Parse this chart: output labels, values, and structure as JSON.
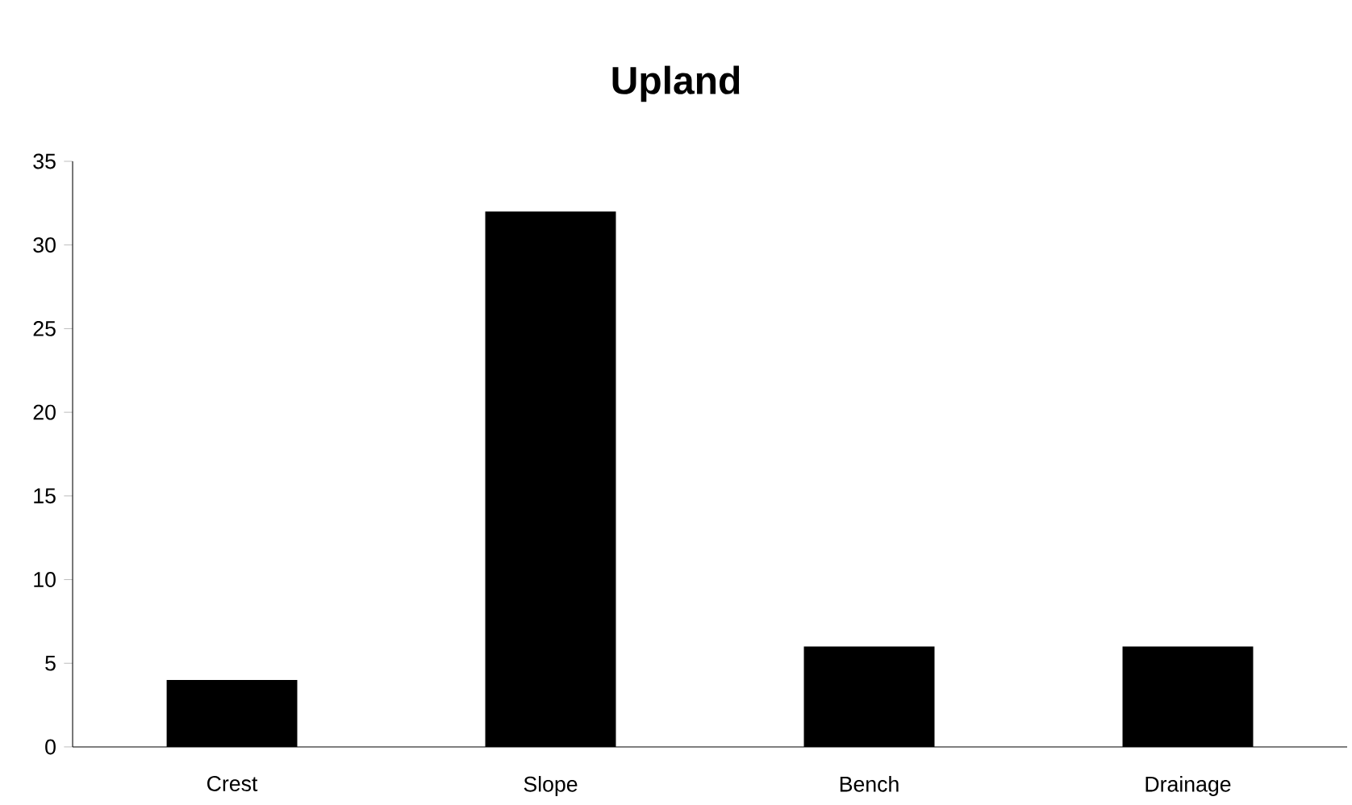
{
  "chart_data": {
    "type": "bar",
    "title": "Upland",
    "categories": [
      "Crest",
      "Slope",
      "Bench",
      "Drainage"
    ],
    "values": [
      4,
      32,
      6,
      6
    ],
    "color": "#000000",
    "ylim": [
      0,
      35
    ],
    "yticks": [
      0,
      5,
      10,
      15,
      20,
      25,
      30,
      35
    ]
  }
}
